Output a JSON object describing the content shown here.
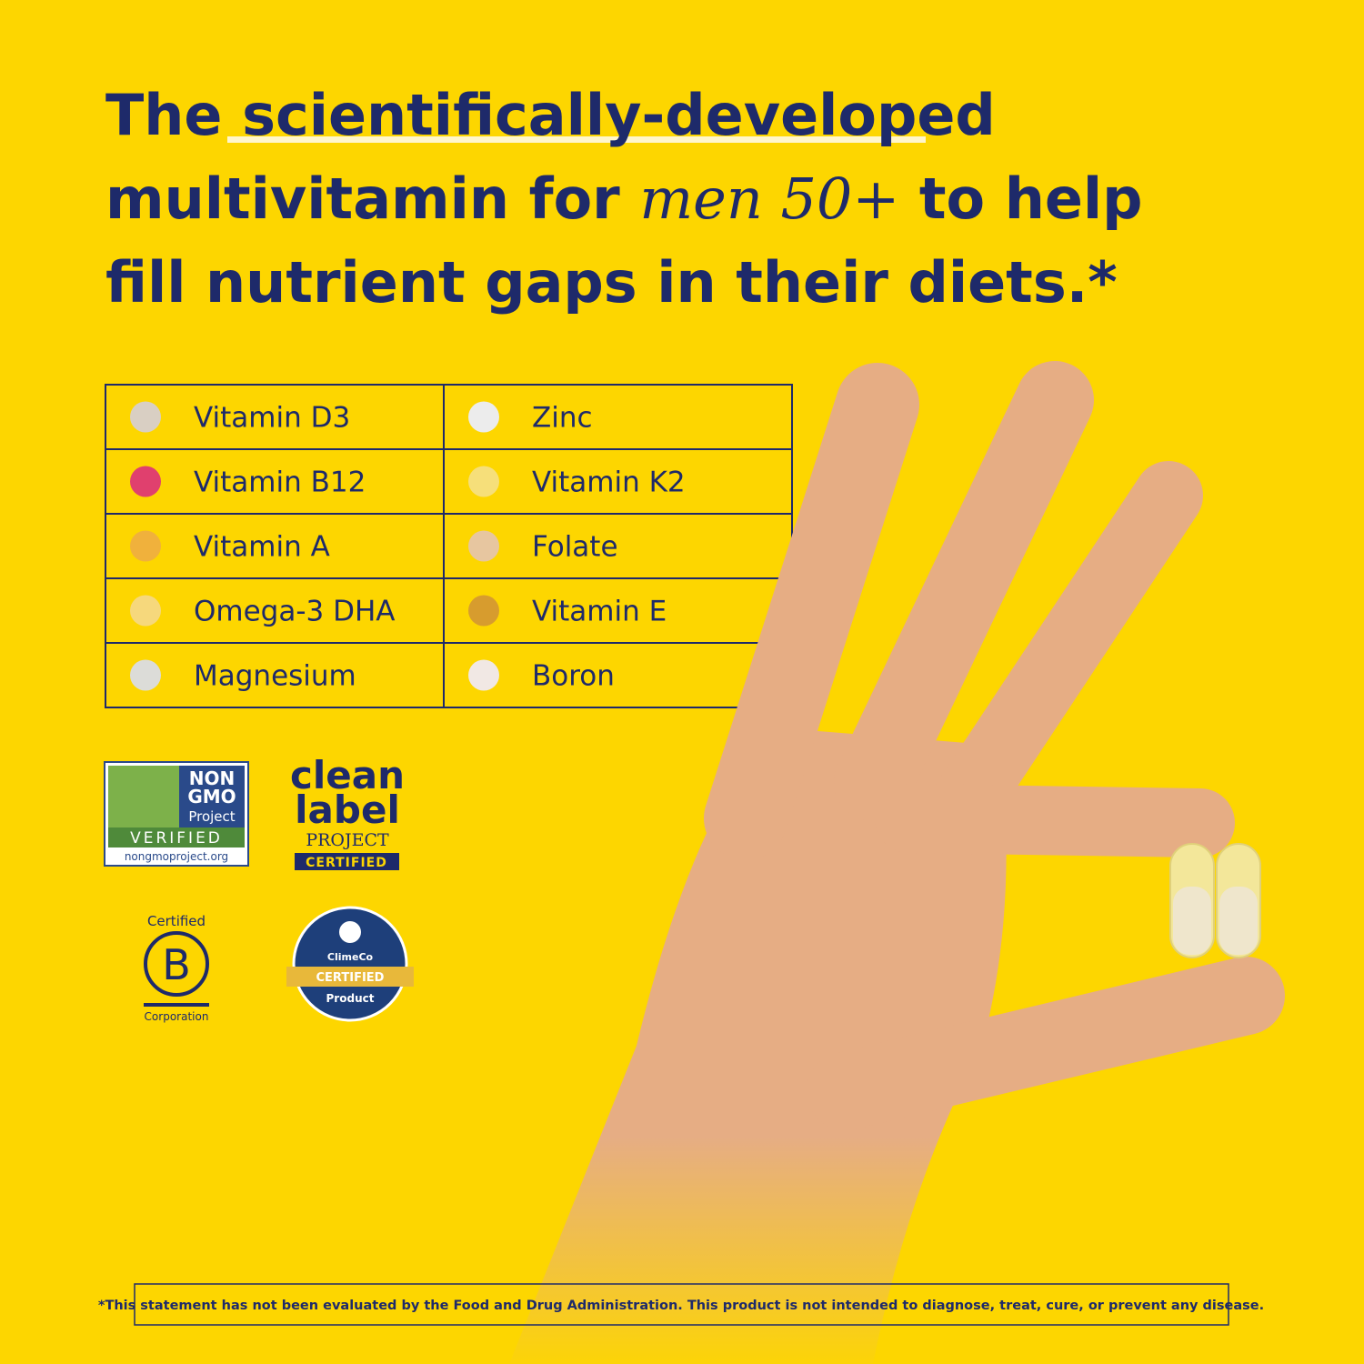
{
  "headline": {
    "line1_start": "The",
    "line1_highlight": "scientifically-developed",
    "line2_start": "multivitamin for",
    "line2_emphasis": "men 50+",
    "line2_end": "to help",
    "line3": "fill nutrient gaps in their diets.*"
  },
  "table": {
    "rows": [
      [
        {
          "name": "Vitamin D3",
          "color": "#d9cfc3"
        },
        {
          "name": "Zinc",
          "color": "#ececec"
        }
      ],
      [
        {
          "name": "Vitamin B12",
          "color": "#e0406e"
        },
        {
          "name": "Vitamin K2",
          "color": "#f6df7a"
        }
      ],
      [
        {
          "name": "Vitamin A",
          "color": "#f0b13c"
        },
        {
          "name": "Folate",
          "color": "#e7c6a0"
        }
      ],
      [
        {
          "name": "Omega-3 DHA",
          "color": "#f6d87c"
        },
        {
          "name": "Vitamin E",
          "color": "#d79c2e"
        }
      ],
      [
        {
          "name": "Magnesium",
          "color": "#dcdcd8"
        },
        {
          "name": "Boron",
          "color": "#f1e8e4"
        }
      ]
    ]
  },
  "badges": {
    "non_gmo": {
      "line1": "NON",
      "line2": "GMO",
      "line3": "Project",
      "verified": "VERIFIED",
      "url": "nongmoproject.org"
    },
    "clean_label": {
      "line1": "clean",
      "line2": "label",
      "line3": "PROJECT",
      "certified": "CERTIFIED"
    },
    "b_corp": {
      "top": "Certified",
      "mark": "B",
      "bottom": "Corporation"
    },
    "climeco": {
      "name": "ClimeCo",
      "certified": "CERTIFIED",
      "product": "Product"
    }
  },
  "disclaimer": "*This statement has not been evaluated by the Food and Drug Administration. This product is not intended to diagnose, treat, cure, or prevent any disease."
}
